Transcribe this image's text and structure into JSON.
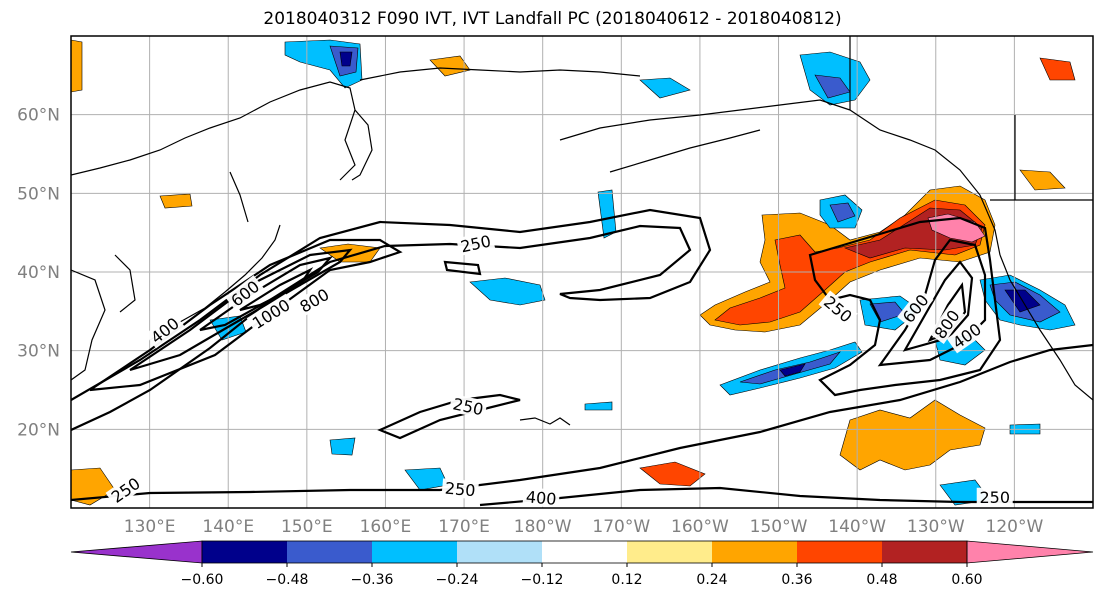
{
  "title": "2018040312 F090 IVT, IVT Landfall PC (2018040612 - 2018040812)",
  "map": {
    "lon_range": [
      120,
      250
    ],
    "lat_range": [
      10,
      70
    ],
    "lat_ticks": [
      {
        "value": 20,
        "label": "20°N"
      },
      {
        "value": 30,
        "label": "30°N"
      },
      {
        "value": 40,
        "label": "40°N"
      },
      {
        "value": 50,
        "label": "50°N"
      },
      {
        "value": 60,
        "label": "60°N"
      }
    ],
    "lon_ticks": [
      {
        "value": 130,
        "label": "130°E"
      },
      {
        "value": 140,
        "label": "140°E"
      },
      {
        "value": 150,
        "label": "150°E"
      },
      {
        "value": 160,
        "label": "160°E"
      },
      {
        "value": 170,
        "label": "170°E"
      },
      {
        "value": 180,
        "label": "180°W"
      },
      {
        "value": 190,
        "label": "170°W"
      },
      {
        "value": 200,
        "label": "160°W"
      },
      {
        "value": 210,
        "label": "150°W"
      },
      {
        "value": 220,
        "label": "140°W"
      },
      {
        "value": 230,
        "label": "130°W"
      },
      {
        "value": 240,
        "label": "120°W"
      }
    ],
    "grid": true,
    "ivt_contour_labels": [
      {
        "text": "250",
        "lon": 171.5,
        "lat": 43.5,
        "angle": 12
      },
      {
        "text": "250",
        "lon": 170.5,
        "lat": 22.8,
        "angle": -12
      },
      {
        "text": "250",
        "lon": 169.5,
        "lat": 12.3,
        "angle": -5
      },
      {
        "text": "400",
        "lon": 179.8,
        "lat": 11.2,
        "angle": -5
      },
      {
        "text": "250",
        "lon": 127.0,
        "lat": 12.2,
        "angle": 35
      },
      {
        "text": "400",
        "lon": 132.0,
        "lat": 32.5,
        "angle": 38
      },
      {
        "text": "600",
        "lon": 142.2,
        "lat": 37.2,
        "angle": 38
      },
      {
        "text": "1000",
        "lon": 145.5,
        "lat": 34.6,
        "angle": 32
      },
      {
        "text": "800",
        "lon": 151.0,
        "lat": 36.3,
        "angle": 30
      },
      {
        "text": "250",
        "lon": 217.5,
        "lat": 35.2,
        "angle": -40
      },
      {
        "text": "600",
        "lon": 227.5,
        "lat": 35.3,
        "angle": 52
      },
      {
        "text": "800",
        "lon": 231.5,
        "lat": 33.3,
        "angle": 55
      },
      {
        "text": "400",
        "lon": 234.0,
        "lat": 31.8,
        "angle": 35
      },
      {
        "text": "250",
        "lon": 237.5,
        "lat": 11.3,
        "angle": 0
      }
    ]
  },
  "colorbar": {
    "labels": [
      "−0.60",
      "−0.48",
      "−0.36",
      "−0.24",
      "−0.12",
      "0.12",
      "0.24",
      "0.36",
      "0.48",
      "0.60"
    ],
    "colors": {
      "lt_m060": "#9932cc",
      "m060_m048": "#00008b",
      "m048_m036": "#3a5bcd",
      "m036_m024": "#00bfff",
      "m024_m012": "#b0e0f8",
      "m012_p012": "#ffffff",
      "p012_p024": "#ffec8b",
      "p024_p036": "#ffa500",
      "p036_p048": "#ff4500",
      "p048_p060": "#b22222",
      "gt_p060": "#ff82ab"
    }
  },
  "colors": {
    "map_border": "#000000",
    "grid": "#b0b0b0",
    "coastline": "#000000",
    "contour": "#000000"
  }
}
